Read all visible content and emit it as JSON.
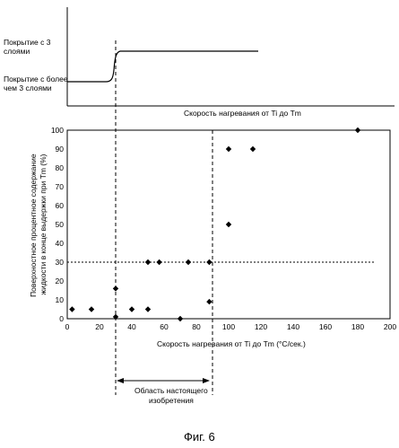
{
  "chart_data": [
    {
      "type": "line",
      "labels": {
        "upper_level": "Покрытие с 3 слоями",
        "lower_level": "Покрытие с более чем 3 слоями"
      },
      "xlabel": "Скорость нагревания от Ti до Tm"
    },
    {
      "type": "scatter",
      "xlabel": "Скорость нагревания от Ti до Tm (°C/сек.)",
      "ylabel": "Поверхностное процентное содержание жидкости в конце выдержки при Tm (%)",
      "xlim": [
        0,
        200
      ],
      "ylim": [
        0,
        100
      ],
      "x_ticks": [
        0,
        20,
        40,
        60,
        80,
        100,
        120,
        140,
        160,
        180,
        200
      ],
      "y_ticks": [
        0,
        10,
        20,
        30,
        40,
        50,
        60,
        70,
        80,
        90,
        100
      ],
      "points": [
        {
          "x": 3,
          "y": 5
        },
        {
          "x": 15,
          "y": 5
        },
        {
          "x": 30,
          "y": 1
        },
        {
          "x": 30,
          "y": 16
        },
        {
          "x": 40,
          "y": 5
        },
        {
          "x": 50,
          "y": 30
        },
        {
          "x": 50,
          "y": 5
        },
        {
          "x": 57,
          "y": 30
        },
        {
          "x": 70,
          "y": 0
        },
        {
          "x": 75,
          "y": 30
        },
        {
          "x": 88,
          "y": 30
        },
        {
          "x": 88,
          "y": 9
        },
        {
          "x": 100,
          "y": 50
        },
        {
          "x": 100,
          "y": 90
        },
        {
          "x": 115,
          "y": 90
        },
        {
          "x": 180,
          "y": 100
        }
      ],
      "ref_lines": {
        "x": [
          30,
          90
        ],
        "y": 30
      },
      "region": {
        "from": 30,
        "to": 90,
        "label": "Область настоящего изобретения"
      }
    }
  ],
  "figure_caption": "Фиг. 6"
}
